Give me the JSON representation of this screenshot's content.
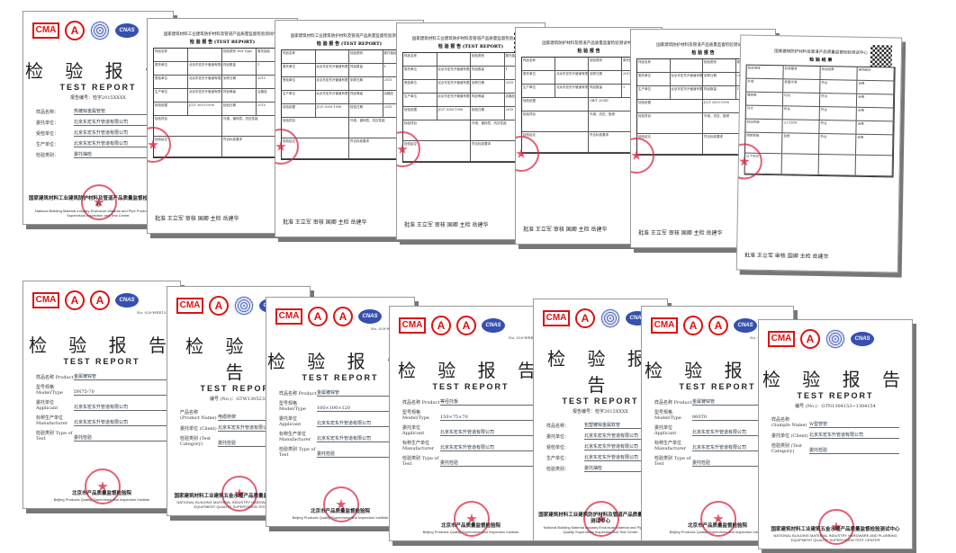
{
  "top_reports": [
    {
      "kind": "cover",
      "title": "检 验 报 告",
      "subtitle": "TEST REPORT",
      "number": "报告编号：检字2015XXXX",
      "fields": [
        {
          "label": "样品名称：",
          "value": "热镀锌金属管管"
        },
        {
          "label": "委托单位：",
          "value": "北京东宏东升管道有限公司"
        },
        {
          "label": "受检单位：",
          "value": "北京东宏东升管道有限公司"
        },
        {
          "label": "生产单位：",
          "value": "北京东宏东升管道有限公司"
        },
        {
          "label": "检验类别：",
          "value": "委托抽检"
        }
      ],
      "footer": "国家建筑材料工业建筑防护材料及管道产品质量监督检验测试中心",
      "footer_en": "National Building Material Industry Enclosure Material and Pipe Product Quality Supervision Inspection and Test Center"
    },
    {
      "kind": "table",
      "header": "国家建筑材料工业建筑防护材料及管道产品质量监督检验测试中心",
      "title": "检 验 报 告 (TEST REPORT)",
      "rows": [
        [
          "样品名称",
          "",
          "检验类别 Test Type",
          "委托抽检"
        ],
        [
          "委托单位",
          "北京东宏东升管道有限公司",
          "样品数量",
          "1"
        ],
        [
          "受检单位",
          "北京东宏东升管道有限公司",
          "到样日期",
          "2015"
        ],
        [
          "生产单位",
          "北京东宏东升管道有限公司",
          "样品等级",
          "合格品"
        ],
        [
          "检验依据",
          "JG/T 3050-1998",
          "检验日期",
          "2015"
        ],
        [
          "检验项目",
          "外观、镀锌层、抗压性能"
        ],
        [
          "检验结论",
          "符合标准要求"
        ]
      ],
      "signature": "批准 王立军  审核 国卿  主检 岳建华"
    },
    {
      "kind": "table",
      "header": "国家建筑材料工业建筑防护材料及管道产品质量监督检验测试中心",
      "title": "检 验 报 告 (TEST REPORT)",
      "rows": [
        [
          "样品名称",
          "",
          "检验类别",
          "委托抽检"
        ],
        [
          "委托单位",
          "北京东宏东升管道有限公司",
          "样品数量",
          "1"
        ],
        [
          "受检单位",
          "北京东宏东升管道有限公司",
          "到样日期",
          "2015"
        ],
        [
          "生产单位",
          "北京东宏东升管道有限公司",
          "样品等级",
          "合格品"
        ],
        [
          "检验依据",
          "JG/T 3050-1998",
          "检验日期",
          "2015"
        ],
        [
          "检验项目",
          "外观、镀锌层、抗压性能"
        ],
        [
          "检验结论",
          "符合标准要求"
        ]
      ],
      "signature": "批准 王立军  审核 国卿  主检 岳建华"
    },
    {
      "kind": "table",
      "header": "国家建筑材料工业建筑防护材料及管道产品质量监督检验测试中心",
      "title": "检 验 报 告 (TEST REPORT)",
      "rows": [
        [
          "样品名称",
          "",
          "检验类别",
          "委托抽检"
        ],
        [
          "委托单位",
          "北京东宏东升管道有限公司",
          "样品数量",
          "1"
        ],
        [
          "受检单位",
          "北京东宏东升管道有限公司",
          "到样日期",
          "2015"
        ],
        [
          "生产单位",
          "北京东宏东升管道有限公司",
          "样品等级",
          "合格品"
        ],
        [
          "检验依据",
          "JG/T 3050-1998",
          "检验日期",
          "2015"
        ],
        [
          "检验项目",
          "外观、镀锌层、抗压性能"
        ],
        [
          "检验结论",
          "符合标准要求"
        ]
      ],
      "signature": "批准 王立军  审核 国卿  主检 岳建华"
    },
    {
      "kind": "table",
      "header": "国家建筑防护材料及管道产品质量监督检验测试中心",
      "title": "检 验 报 告",
      "rows": [
        [
          "样品名称",
          "",
          "检验类别",
          "委托检验"
        ],
        [
          "委托单位",
          "北京东宏东升管道有限公司",
          "到样日期",
          "2015"
        ],
        [
          "生产单位",
          "北京东宏东升管道有限公司",
          "样品数量",
          "1"
        ],
        [
          "检验依据",
          "GB/T 20041"
        ],
        [
          "检验项目",
          "外观、抗压、阻燃"
        ],
        [
          "检验结论",
          "符合标准要求"
        ]
      ],
      "signature": "批准 王立军  审核 国卿  主检 岳建华"
    },
    {
      "kind": "table",
      "header": "国家建筑防护材料及管道产品质量监督检验测试中心",
      "title": "检 验 报 告",
      "rows": [
        [
          "样品名称",
          "",
          "检验类别",
          "委托检验"
        ],
        [
          "委托单位",
          "北京东宏东升管道有限公司",
          "到样日期",
          "2015"
        ],
        [
          "生产单位",
          "北京东宏东升管道有限公司",
          "样品数量",
          "1"
        ],
        [
          "检验依据",
          "JG/T 3050-1998"
        ],
        [
          "检验项目",
          "外观、抗压、阻燃"
        ],
        [
          "检验结论",
          "符合标准要求"
        ]
      ],
      "signature": "批准 王立军  审核 国卿  主检 岳建华"
    },
    {
      "kind": "table",
      "header": "国家建筑防护材料及管道产品质量监督检验测试中心",
      "title": "检 验 结 果",
      "rows": [
        [
          "检验项目",
          "标准要求",
          "检验结果",
          "单项结论"
        ],
        [
          "外观",
          "表面光滑",
          "符合",
          "合格"
        ],
        [
          "镀锌层",
          "均匀",
          "符合",
          "合格"
        ],
        [
          "尺寸",
          "符合",
          "符合",
          "合格"
        ],
        [
          "抗压性能",
          "≥1250N",
          "符合",
          "合格"
        ],
        [
          "阻燃性能",
          "自熄",
          "符合",
          "合格"
        ],
        [
          "以下空白",
          "",
          "",
          ""
        ]
      ],
      "signature": "批准 王立军  审核 国卿  主检 岳建华"
    }
  ],
  "bottom_reports": [
    {
      "kind": "cover",
      "no": "No. 020-WEE13142",
      "title": "检 验 报 告",
      "subtitle": "TEST REPORT",
      "fields": [
        {
          "label": "样品名称 Product",
          "value": "金属镀锌管"
        },
        {
          "label": "型号规格 Model/Type",
          "value": "DN75-70"
        },
        {
          "label": "委托单位 Applicant",
          "value": "北京东宏东升管道有限公司"
        },
        {
          "label": "标称生产单位 Manufacturer",
          "value": "北京东宏东升管道有限公司"
        },
        {
          "label": "检验类别 Type of Test",
          "value": "委托检验"
        }
      ],
      "footer": "北京市产品质量监督检验院",
      "footer_en": "Beijing Products Quality Supervision and Inspection Institute"
    },
    {
      "kind": "cover",
      "title": "检 验 报 告",
      "subtitle": "TEST    REPORT",
      "number": "编号 (No.)：GTW1305232",
      "fields": [
        {
          "label": "产品名称 (Product Name)",
          "value": "电缆桥架"
        },
        {
          "label": "委托单位 (Client)",
          "value": "北京东宏东升管道有限公司"
        },
        {
          "label": "检验类别 (Test Category)",
          "value": "委托检验"
        }
      ],
      "footer": "国家建筑材料工业建筑五金水暖产品质量监督检验测试中心",
      "footer_en": "NATIONAL BUILDING MATERIAL INDUSTRY HARDWARE AND PLUMBING EQUIPMENT QUALITY SUPERVISION TEST CENTER"
    },
    {
      "kind": "cover",
      "no": "No. 020-WEE13144",
      "title": "检 验 报 告",
      "subtitle": "TEST REPORT",
      "fields": [
        {
          "label": "样品名称 Product",
          "value": "金属镀锌管"
        },
        {
          "label": "型号规格 Model/Type",
          "value": "100×100×120"
        },
        {
          "label": "委托单位 Applicant",
          "value": "北京东宏东升管道有限公司"
        },
        {
          "label": "标称生产单位 Manufacturer",
          "value": "北京东宏东升管道有限公司"
        },
        {
          "label": "检验类别 Type of Test",
          "value": "委托检验"
        }
      ],
      "footer": "北京市产品质量监督检验院",
      "footer_en": "Beijing Products Quality Supervision and Inspection Institute"
    },
    {
      "kind": "cover",
      "no": "No. 020-WEE13143",
      "title": "检 验 报 告",
      "subtitle": "TEST REPORT",
      "fields": [
        {
          "label": "样品名称 Product",
          "value": "等径托板"
        },
        {
          "label": "型号规格 Model/Type",
          "value": "150×75×70"
        },
        {
          "label": "委托单位 Applicant",
          "value": "北京东宏东升管道有限公司"
        },
        {
          "label": "标称生产单位 Manufacturer",
          "value": "北京东宏东升管道有限公司"
        },
        {
          "label": "检验类别 Type of Test",
          "value": "委托检验"
        }
      ],
      "footer": "北京市产品质量监督检验院",
      "footer_en": "Beijing Products Quality Supervision and Inspection Institute"
    },
    {
      "kind": "cover",
      "title": "检 验 报 告",
      "subtitle": "TEST REPORT",
      "number": "报告编号：检字2015XXXX",
      "fields": [
        {
          "label": "样品名称：",
          "value": "包塑镀锌金属软管"
        },
        {
          "label": "委托单位：",
          "value": "北京东宏东升管道有限公司"
        },
        {
          "label": "受检单位：",
          "value": "北京东宏东升管道有限公司"
        },
        {
          "label": "生产单位：",
          "value": "北京东宏东升管道有限公司"
        },
        {
          "label": "检验类别：",
          "value": "委托抽检"
        }
      ],
      "footer": "国家建筑材料工业建筑防护材料及管道产品质量监督检验测试中心",
      "footer_en": "National Building Material Industry Enclosure Material and Pipe Product Quality Supervision Inspection and Test Center"
    },
    {
      "kind": "cover",
      "no": "No. 020-WEE13141",
      "title": "检 验 报 告",
      "subtitle": "TEST REPORT",
      "fields": [
        {
          "label": "样品名称 Product",
          "value": "金属镀锌管"
        },
        {
          "label": "型号规格 Model/Type",
          "value": "860T0"
        },
        {
          "label": "委托单位 Applicant",
          "value": "北京东宏东升管道有限公司"
        },
        {
          "label": "标称生产单位 Manufacturer",
          "value": "北京东宏东升管道有限公司"
        },
        {
          "label": "检验类别 Type of Test",
          "value": "委托检验"
        }
      ],
      "footer": "北京市产品质量监督检验院",
      "footer_en": "Beijing Products Quality Supervision and Inspection Institute"
    },
    {
      "kind": "cover",
      "title": "检 验 报 告",
      "subtitle": "TEST    REPORT",
      "number": "编号 (No.)：GTN1304153~1304154",
      "fields": [
        {
          "label": "样品名称 (Sample Name)",
          "value": "W型管管"
        },
        {
          "label": "委托单位 (Client)",
          "value": "北京东宏东升管道有限公司"
        },
        {
          "label": "检验类别 (Test Category)",
          "value": "委托检验"
        }
      ],
      "footer": "国家建筑材料工业建筑五金水暖产品质量监督检验测试中心",
      "footer_en": "NATIONAL BUILDING MATERIAL INDUSTRY HARDWARE AND PLUMBING EQUIPMENT QUALITY SUPERVISION TEST CENTER"
    }
  ],
  "colors": {
    "seal": "#dc2846",
    "logo_red": "#d11111",
    "cnas_blue": "#3550b0"
  }
}
